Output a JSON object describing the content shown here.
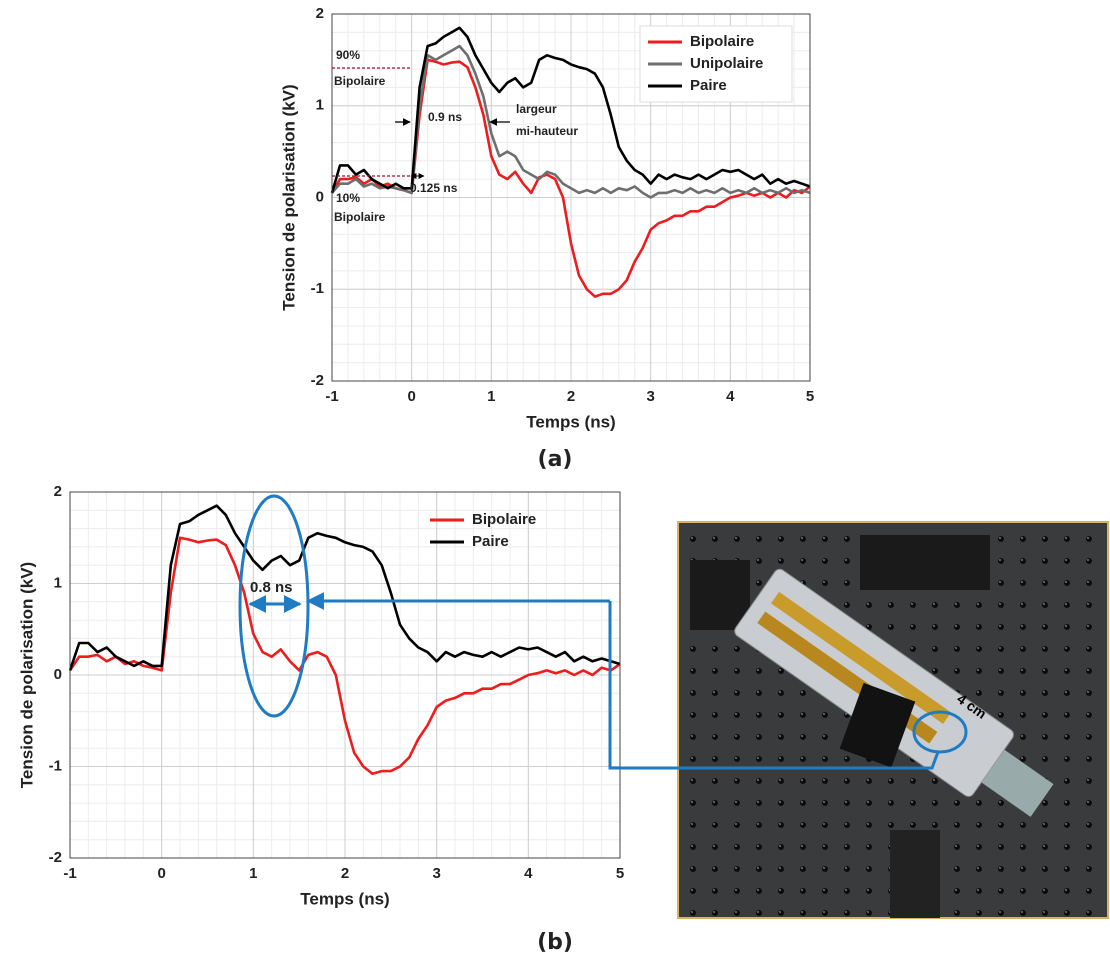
{
  "chart_data": [
    {
      "type": "line",
      "panel": "(a)",
      "xlabel": "Temps (ns)",
      "ylabel": "Tension de polarisation (kV)",
      "xlim": [
        -1,
        5
      ],
      "ylim": [
        -2,
        2
      ],
      "xticks": [
        -1,
        0,
        1,
        2,
        3,
        4,
        5
      ],
      "yticks": [
        -2,
        -1,
        0,
        1,
        2
      ],
      "grid": true,
      "legend": "upper right",
      "annotations": [
        "90%",
        "Bipolaire",
        "0.9 ns",
        "largeur",
        "mi-hauteur",
        "10%",
        "Bipolaire",
        "0.125 ns"
      ],
      "x": [
        -1,
        -0.9,
        -0.8,
        -0.7,
        -0.6,
        -0.5,
        -0.4,
        -0.3,
        -0.2,
        -0.1,
        0,
        0.1,
        0.2,
        0.3,
        0.4,
        0.5,
        0.6,
        0.7,
        0.8,
        0.9,
        1,
        1.1,
        1.2,
        1.3,
        1.4,
        1.5,
        1.6,
        1.7,
        1.8,
        1.9,
        2,
        2.1,
        2.2,
        2.3,
        2.4,
        2.5,
        2.6,
        2.7,
        2.8,
        2.9,
        3,
        3.1,
        3.2,
        3.3,
        3.4,
        3.5,
        3.6,
        3.7,
        3.8,
        3.9,
        4,
        4.1,
        4.2,
        4.3,
        4.4,
        4.5,
        4.6,
        4.7,
        4.8,
        4.9,
        5
      ],
      "series": [
        {
          "name": "Bipolaire",
          "color": "#ee1c1c",
          "values": [
            0.05,
            0.2,
            0.2,
            0.22,
            0.15,
            0.2,
            0.12,
            0.15,
            0.1,
            0.08,
            0.05,
            0.9,
            1.5,
            1.48,
            1.45,
            1.47,
            1.48,
            1.42,
            1.2,
            0.9,
            0.45,
            0.25,
            0.2,
            0.28,
            0.15,
            0.05,
            0.22,
            0.25,
            0.2,
            0,
            -0.5,
            -0.85,
            -1,
            -1.08,
            -1.05,
            -1.05,
            -1,
            -0.9,
            -0.7,
            -0.55,
            -0.35,
            -0.28,
            -0.25,
            -0.2,
            -0.2,
            -0.15,
            -0.15,
            -0.1,
            -0.1,
            -0.05,
            0,
            0.02,
            0.05,
            0.02,
            0.05,
            0,
            0.05,
            0,
            0.08,
            0.05,
            0.12
          ]
        },
        {
          "name": "Unipolaire",
          "color": "#6e6e6e",
          "values": [
            0.05,
            0.15,
            0.15,
            0.2,
            0.12,
            0.15,
            0.1,
            0.12,
            0.1,
            0.08,
            0.05,
            1,
            1.55,
            1.5,
            1.55,
            1.6,
            1.65,
            1.55,
            1.35,
            1.1,
            0.7,
            0.45,
            0.5,
            0.45,
            0.3,
            0.25,
            0.2,
            0.28,
            0.25,
            0.15,
            0.1,
            0.05,
            0.08,
            0.05,
            0.1,
            0.05,
            0.1,
            0.08,
            0.12,
            0.05,
            0,
            0.05,
            0.05,
            0.08,
            0.05,
            0.1,
            0.05,
            0.08,
            0.05,
            0.1,
            0.05,
            0.08,
            0.05,
            0.1,
            0.05,
            0.08,
            0.05,
            0.1,
            0.05,
            0.08,
            0.05
          ]
        },
        {
          "name": "Paire",
          "color": "#000000",
          "values": [
            0.05,
            0.35,
            0.35,
            0.25,
            0.3,
            0.2,
            0.15,
            0.1,
            0.15,
            0.1,
            0.1,
            1.2,
            1.65,
            1.68,
            1.75,
            1.8,
            1.85,
            1.75,
            1.55,
            1.4,
            1.25,
            1.15,
            1.25,
            1.3,
            1.2,
            1.25,
            1.5,
            1.55,
            1.52,
            1.5,
            1.45,
            1.42,
            1.4,
            1.35,
            1.2,
            0.9,
            0.55,
            0.4,
            0.3,
            0.25,
            0.15,
            0.25,
            0.2,
            0.25,
            0.22,
            0.2,
            0.25,
            0.2,
            0.25,
            0.3,
            0.28,
            0.3,
            0.25,
            0.2,
            0.25,
            0.15,
            0.2,
            0.15,
            0.18,
            0.15,
            0.12
          ]
        }
      ]
    },
    {
      "type": "line",
      "panel": "(b)",
      "xlabel": "Temps (ns)",
      "ylabel": "Tension de polarisation (kV)",
      "xlim": [
        -1,
        5
      ],
      "ylim": [
        -2,
        2
      ],
      "xticks": [
        -1,
        0,
        1,
        2,
        3,
        4,
        5
      ],
      "yticks": [
        -2,
        -1,
        0,
        1,
        2
      ],
      "grid": true,
      "legend": "upper right",
      "annotations": [
        "0.8 ns"
      ],
      "x": [
        -1,
        -0.9,
        -0.8,
        -0.7,
        -0.6,
        -0.5,
        -0.4,
        -0.3,
        -0.2,
        -0.1,
        0,
        0.1,
        0.2,
        0.3,
        0.4,
        0.5,
        0.6,
        0.7,
        0.8,
        0.9,
        1,
        1.1,
        1.2,
        1.3,
        1.4,
        1.5,
        1.6,
        1.7,
        1.8,
        1.9,
        2,
        2.1,
        2.2,
        2.3,
        2.4,
        2.5,
        2.6,
        2.7,
        2.8,
        2.9,
        3,
        3.1,
        3.2,
        3.3,
        3.4,
        3.5,
        3.6,
        3.7,
        3.8,
        3.9,
        4,
        4.1,
        4.2,
        4.3,
        4.4,
        4.5,
        4.6,
        4.7,
        4.8,
        4.9,
        5
      ],
      "series": [
        {
          "name": "Bipolaire",
          "color": "#ee1c1c",
          "values": [
            0.05,
            0.2,
            0.2,
            0.22,
            0.15,
            0.2,
            0.12,
            0.15,
            0.1,
            0.08,
            0.05,
            0.9,
            1.5,
            1.48,
            1.45,
            1.47,
            1.48,
            1.42,
            1.2,
            0.9,
            0.45,
            0.25,
            0.2,
            0.28,
            0.15,
            0.05,
            0.22,
            0.25,
            0.2,
            0,
            -0.5,
            -0.85,
            -1,
            -1.08,
            -1.05,
            -1.05,
            -1,
            -0.9,
            -0.7,
            -0.55,
            -0.35,
            -0.28,
            -0.25,
            -0.2,
            -0.2,
            -0.15,
            -0.15,
            -0.1,
            -0.1,
            -0.05,
            0,
            0.02,
            0.05,
            0.02,
            0.05,
            0,
            0.05,
            0,
            0.08,
            0.05,
            0.12
          ]
        },
        {
          "name": "Paire",
          "color": "#000000",
          "values": [
            0.05,
            0.35,
            0.35,
            0.25,
            0.3,
            0.2,
            0.15,
            0.1,
            0.15,
            0.1,
            0.1,
            1.2,
            1.65,
            1.68,
            1.75,
            1.8,
            1.85,
            1.75,
            1.55,
            1.4,
            1.25,
            1.15,
            1.25,
            1.3,
            1.2,
            1.25,
            1.5,
            1.55,
            1.52,
            1.5,
            1.45,
            1.42,
            1.4,
            1.35,
            1.2,
            0.9,
            0.55,
            0.4,
            0.3,
            0.25,
            0.15,
            0.25,
            0.2,
            0.25,
            0.22,
            0.2,
            0.25,
            0.2,
            0.25,
            0.3,
            0.28,
            0.3,
            0.25,
            0.2,
            0.25,
            0.15,
            0.2,
            0.15,
            0.18,
            0.15,
            0.12
          ]
        }
      ]
    }
  ],
  "photo": {
    "label": "4 cm"
  }
}
